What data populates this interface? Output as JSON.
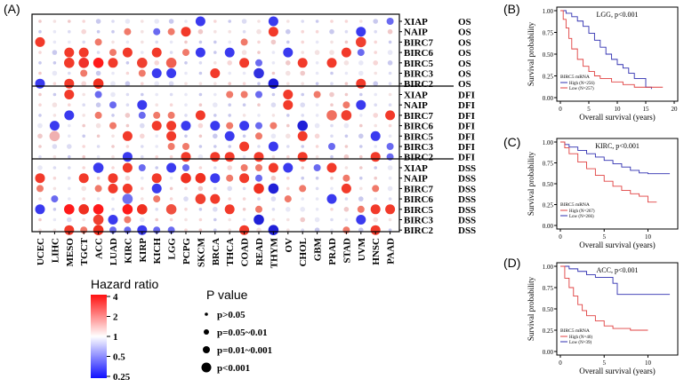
{
  "panels": {
    "A": "(A)",
    "B": "(B)",
    "C": "(C)",
    "D": "(D)"
  },
  "heatmap": {
    "row_labels": [
      "XIAP",
      "NAIP",
      "BIRC7",
      "BIRC6",
      "BIRC5",
      "BIRC3",
      "BIRC2"
    ],
    "groups": [
      "OS",
      "DFI",
      "DSS"
    ],
    "columns": [
      "UCEC",
      "LIHC",
      "MESO",
      "TGCT",
      "ACC",
      "LUAD",
      "KIRC",
      "KIRP",
      "KICH",
      "LGG",
      "PCPG",
      "SKCM",
      "BRCA",
      "THCA",
      "COAD",
      "READ",
      "THYM",
      "OV",
      "CHOL",
      "GBM",
      "PRAD",
      "STAD",
      "UVM",
      "HNSC",
      "PAAD"
    ],
    "hazard_legend": {
      "title": "Hazard ratio",
      "ticks": [
        "4",
        "2",
        "1",
        "0.5",
        "0.25"
      ]
    },
    "pvalue_legend": {
      "title": "P value",
      "items": [
        "p>0.05",
        "p=0.05~0.01",
        "p=0.01~0.001",
        "p<0.001"
      ]
    }
  },
  "km_plots": [
    {
      "id": "B",
      "title": "LGG, p<0.001",
      "ylabel": "Survival probability",
      "xlabel": "Overall survival (years)",
      "yticks": [
        "1.00",
        "0.75",
        "0.50",
        "0.25",
        "0.00"
      ],
      "xticks": [
        "0",
        "5",
        "10",
        "15",
        "20"
      ],
      "legend_title": "BIRC5 mRNA",
      "legend_items": [
        {
          "label": "High (N=256)",
          "color": "#2f2fb0"
        },
        {
          "label": "Low (N=257)",
          "color": "#e04040"
        }
      ]
    },
    {
      "id": "C",
      "title": "KIRC, p<0.001",
      "ylabel": "Survival probability",
      "xlabel": "Overall survival (years)",
      "yticks": [
        "1.00",
        "0.75",
        "0.50",
        "0.25",
        "0.00"
      ],
      "xticks": [
        "0",
        "5",
        "10"
      ],
      "legend_title": "BIRC5 mRNA",
      "legend_items": [
        {
          "label": "High (N=267)",
          "color": "#e04040"
        },
        {
          "label": "Low (N=266)",
          "color": "#2f2fb0"
        }
      ]
    },
    {
      "id": "D",
      "title": "ACC, p<0.001",
      "ylabel": "Survival probability",
      "xlabel": "Overall survival (years)",
      "yticks": [
        "1.00",
        "0.75",
        "0.50",
        "0.25",
        "0.00"
      ],
      "xticks": [
        "0",
        "5",
        "10"
      ],
      "legend_title": "BIRC5 mRNA",
      "legend_items": [
        {
          "label": "High (N=40)",
          "color": "#e04040"
        },
        {
          "label": "Low (N=39)",
          "color": "#2f2fb0"
        }
      ]
    }
  ]
}
